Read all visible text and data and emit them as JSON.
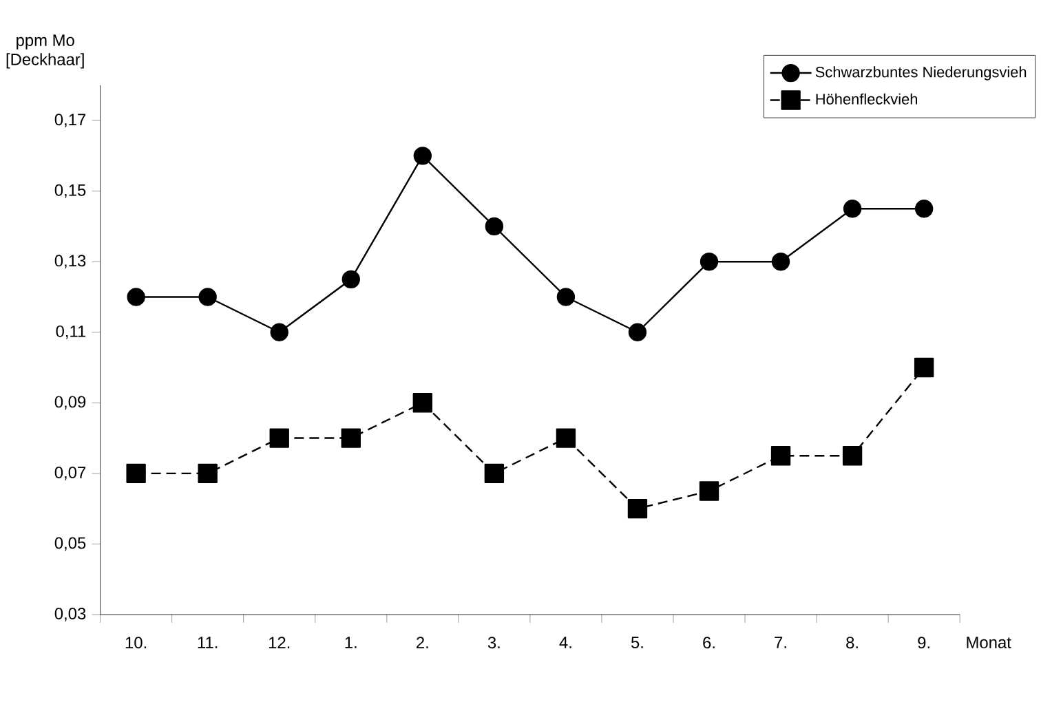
{
  "chart_data": {
    "type": "line",
    "ylabel": "ppm Mo\n[Deckhaar]",
    "xlabel": "Monat",
    "categories": [
      "10.",
      "11.",
      "12.",
      "1.",
      "2.",
      "3.",
      "4.",
      "5.",
      "6.",
      "7.",
      "8.",
      "9."
    ],
    "series": [
      {
        "name": "Schwarzbuntes Niederungsvieh",
        "color": "#000000",
        "marker": "circle",
        "line_style": "solid",
        "values": [
          0.12,
          0.12,
          0.11,
          0.125,
          0.16,
          0.14,
          0.12,
          0.11,
          0.13,
          0.13,
          0.145,
          0.145
        ]
      },
      {
        "name": "Höhenfleckvieh",
        "color": "#000000",
        "marker": "square",
        "line_style": "dashed",
        "values": [
          0.07,
          0.07,
          0.08,
          0.08,
          0.09,
          0.07,
          0.08,
          0.06,
          0.065,
          0.075,
          0.075,
          0.1
        ]
      }
    ],
    "ylim": [
      0.03,
      0.18
    ],
    "yticks": [
      {
        "value": 0.03,
        "label": "0,03"
      },
      {
        "value": 0.05,
        "label": "0,05"
      },
      {
        "value": 0.07,
        "label": "0,07"
      },
      {
        "value": 0.09,
        "label": "0,09"
      },
      {
        "value": 0.11,
        "label": "0,11"
      },
      {
        "value": 0.13,
        "label": "0,13"
      },
      {
        "value": 0.15,
        "label": "0,15"
      },
      {
        "value": 0.17,
        "label": "0,17"
      }
    ],
    "grid": false,
    "legend": "top right"
  }
}
